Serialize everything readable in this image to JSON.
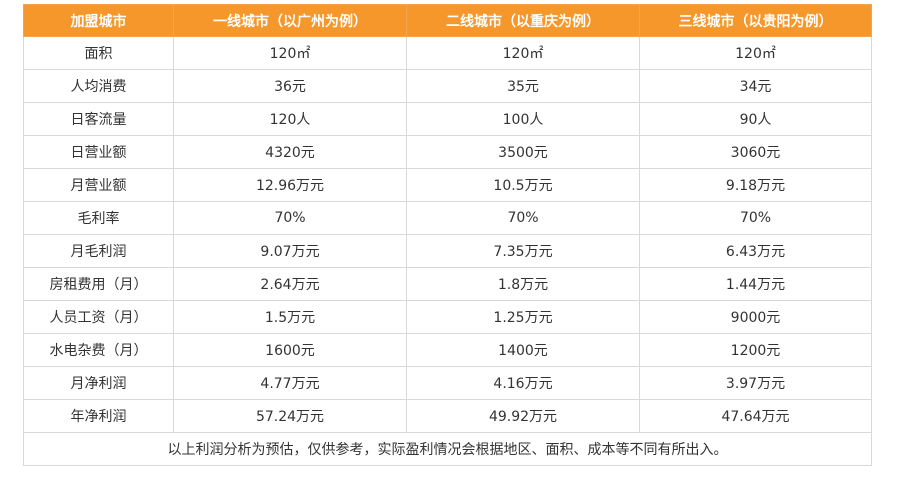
{
  "table": {
    "headers": [
      "加盟城市",
      "一线城市（以广州为例）",
      "二线城市（以重庆为例）",
      "三线城市（以贵阳为例）"
    ],
    "rows": [
      [
        "面积",
        "120㎡",
        "120㎡",
        "120㎡"
      ],
      [
        "人均消费",
        "36元",
        "35元",
        "34元"
      ],
      [
        "日客流量",
        "120人",
        "100人",
        "90人"
      ],
      [
        "日营业额",
        "4320元",
        "3500元",
        "3060元"
      ],
      [
        "月营业额",
        "12.96万元",
        "10.5万元",
        "9.18万元"
      ],
      [
        "毛利率",
        "70%",
        "70%",
        "70%"
      ],
      [
        "月毛利润",
        "9.07万元",
        "7.35万元",
        "6.43万元"
      ],
      [
        "房租费用（月）",
        "2.64万元",
        "1.8万元",
        "1.44万元"
      ],
      [
        "人员工资（月）",
        "1.5万元",
        "1.25万元",
        "9000元"
      ],
      [
        "水电杂费（月）",
        "1600元",
        "1400元",
        "1200元"
      ],
      [
        "月净利润",
        "4.77万元",
        "4.16万元",
        "3.97万元"
      ],
      [
        "年净利润",
        "57.24万元",
        "49.92万元",
        "47.64万元"
      ]
    ],
    "footnote": "以上利润分析为预估，仅供参考，实际盈利情况会根据地区、面积、成本等不同有所出入。"
  },
  "colors": {
    "header_background": "#f6972b",
    "header_text": "#ffffff",
    "border": "#d8d8d8",
    "body_text": "#333333"
  }
}
